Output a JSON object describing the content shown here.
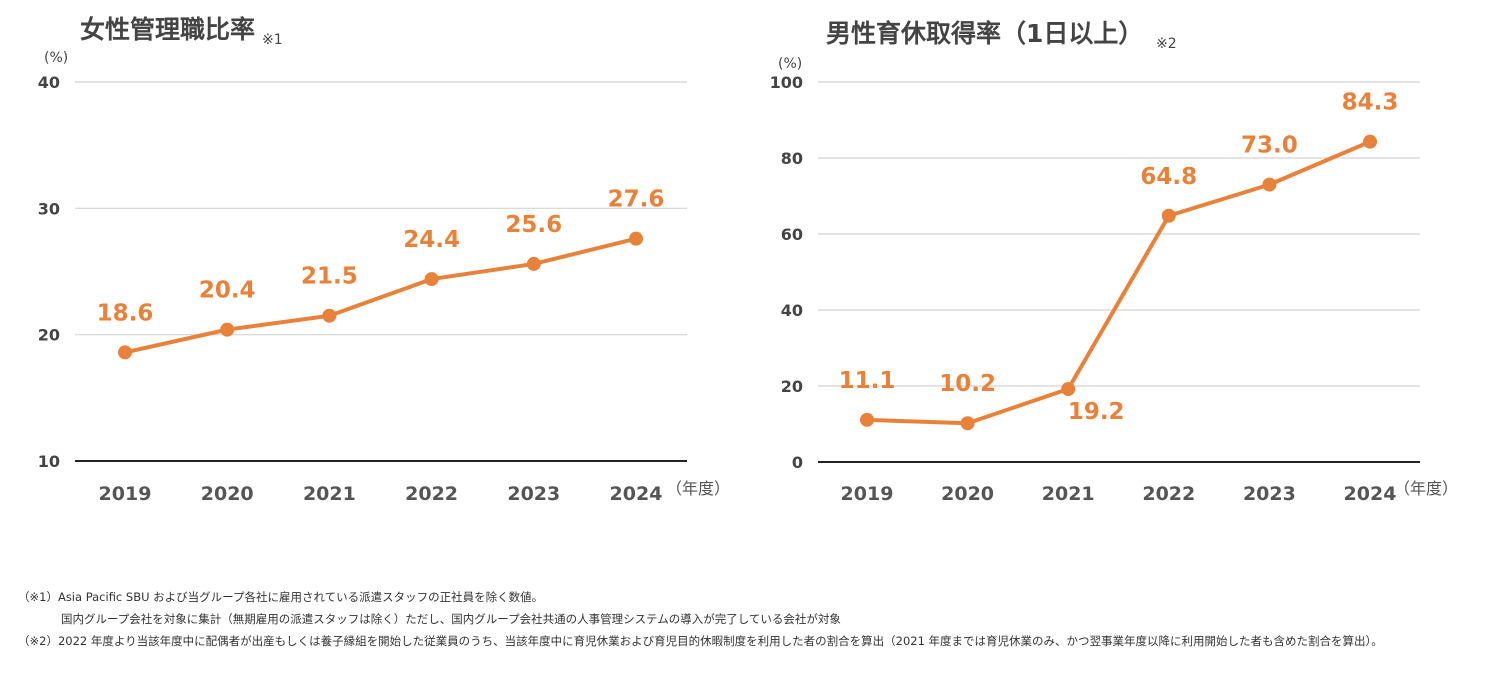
{
  "chart_data": [
    {
      "type": "line",
      "title": "女性管理職比率",
      "title_note": "※1",
      "y_unit": "(%)",
      "x_unit": "（年度）",
      "categories": [
        "2019",
        "2020",
        "2021",
        "2022",
        "2023",
        "2024"
      ],
      "values": [
        18.6,
        20.4,
        21.5,
        24.4,
        25.6,
        27.6
      ],
      "value_labels": [
        "18.6",
        "20.4",
        "21.5",
        "24.4",
        "25.6",
        "27.6"
      ],
      "ylim": [
        10,
        40
      ],
      "yticks": [
        "10",
        "20",
        "30",
        "40"
      ],
      "grid": true,
      "color": "#E8823A"
    },
    {
      "type": "line",
      "title": "男性育休取得率（1日以上）",
      "title_note": "※2",
      "y_unit": "(%)",
      "x_unit": "（年度）",
      "categories": [
        "2019",
        "2020",
        "2021",
        "2022",
        "2023",
        "2024"
      ],
      "values": [
        11.1,
        10.2,
        19.2,
        64.8,
        73.0,
        84.3
      ],
      "value_labels": [
        "11.1",
        "10.2",
        "19.2",
        "64.8",
        "73.0",
        "84.3"
      ],
      "ylim": [
        0,
        100
      ],
      "yticks": [
        "0",
        "20",
        "40",
        "60",
        "80",
        "100"
      ],
      "grid": true,
      "color": "#E8823A"
    }
  ],
  "footnotes": {
    "note1_line1": "（※1）Asia Pacific SBU および当グループ各社に雇用されている派遣スタッフの正社員を除く数値。",
    "note1_line2": "国内グループ会社を対象に集計（無期雇用の派遣スタッフは除く）ただし、国内グループ会社共通の人事管理システムの導入が完了している会社が対象",
    "note2": "（※2）2022 年度より当該年度中に配偶者が出産もしくは養子縁組を開始した従業員のうち、当該年度中に育児休業および育児目的休暇制度を利用した者の割合を算出（2021 年度までは育児休業のみ、かつ翌事業年度以降に利用開始した者も含めた割合を算出）。"
  }
}
